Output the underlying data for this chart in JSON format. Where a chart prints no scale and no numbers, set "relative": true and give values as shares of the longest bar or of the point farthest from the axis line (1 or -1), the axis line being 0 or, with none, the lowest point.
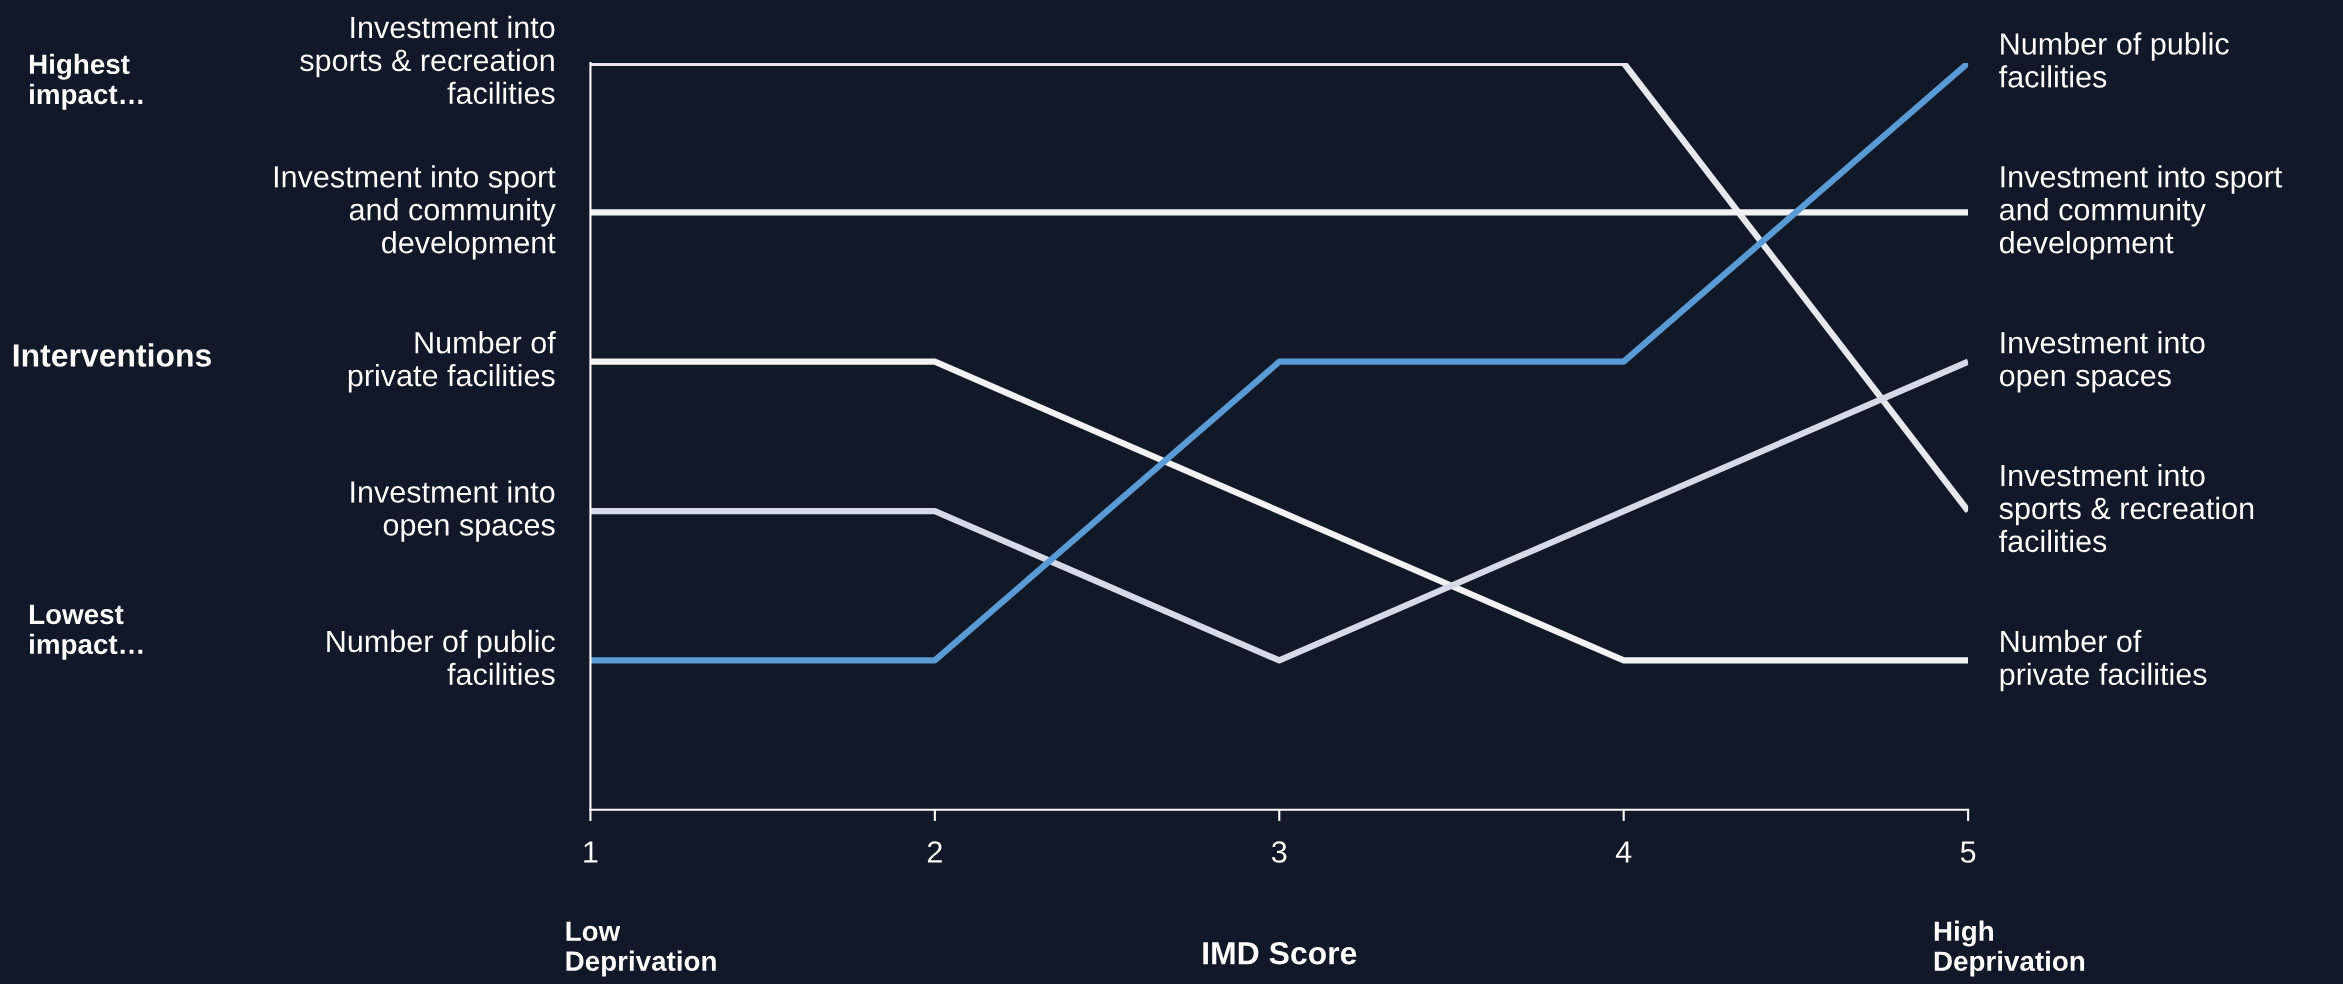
{
  "chart_data": {
    "type": "line",
    "relative": true,
    "xlabel": "IMD Score",
    "x": [
      1,
      2,
      3,
      4,
      5
    ],
    "xlim": [
      1,
      5
    ],
    "xticks": [
      1,
      2,
      3,
      4,
      5
    ],
    "grid": false,
    "legend": false,
    "marker": "none",
    "line_style": "solid",
    "series": [
      {
        "name": "Investment into\nsports & recreation\nfacilities",
        "color": "#e6e8ee",
        "values": [
          1.0,
          1.0,
          1.0,
          1.0,
          0.4
        ]
      },
      {
        "name": "Investment into sport\nand community\ndevelopment",
        "color": "#f2f2f2",
        "values": [
          0.8,
          0.8,
          0.8,
          0.8,
          0.8
        ]
      },
      {
        "name": "Number of\nprivate facilities",
        "color": "#f2f2f2",
        "values": [
          0.6,
          0.6,
          0.4,
          0.2,
          0.2
        ]
      },
      {
        "name": "Investment into\nopen spaces",
        "color": "#d5dae6",
        "values": [
          0.4,
          0.4,
          0.2,
          0.4,
          0.6
        ]
      },
      {
        "name": "Number of public\nfacilities",
        "color": "#5b9bd5",
        "values": [
          0.2,
          0.2,
          0.6,
          0.6,
          1.0
        ]
      }
    ],
    "annotations": [
      "Interventions",
      "Highest\nimpact…",
      "Lowest\nimpact…",
      "Low\nDeprivation",
      "High\nDeprivation"
    ]
  }
}
